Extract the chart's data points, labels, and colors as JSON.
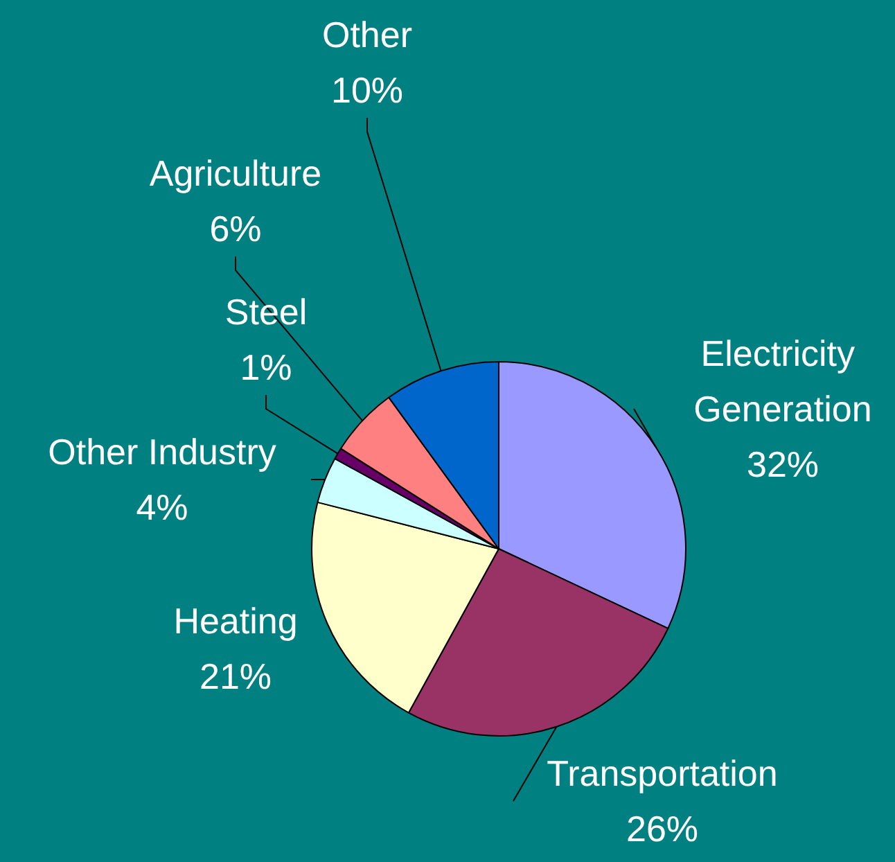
{
  "chart_data": {
    "type": "pie",
    "categories": [
      "Electricity Generation",
      "Transportation",
      "Heating",
      "Other Industry",
      "Steel",
      "Agriculture",
      "Other"
    ],
    "values": [
      32,
      26,
      21,
      4,
      1,
      6,
      10
    ],
    "colors": [
      "#9999ff",
      "#993366",
      "#ffffcc",
      "#ccffff",
      "#660066",
      "#ff8080",
      "#0066cc"
    ],
    "value_labels": [
      "32%",
      "26%",
      "21%",
      "4%",
      "1%",
      "6%",
      "10%"
    ],
    "legend": false
  }
}
